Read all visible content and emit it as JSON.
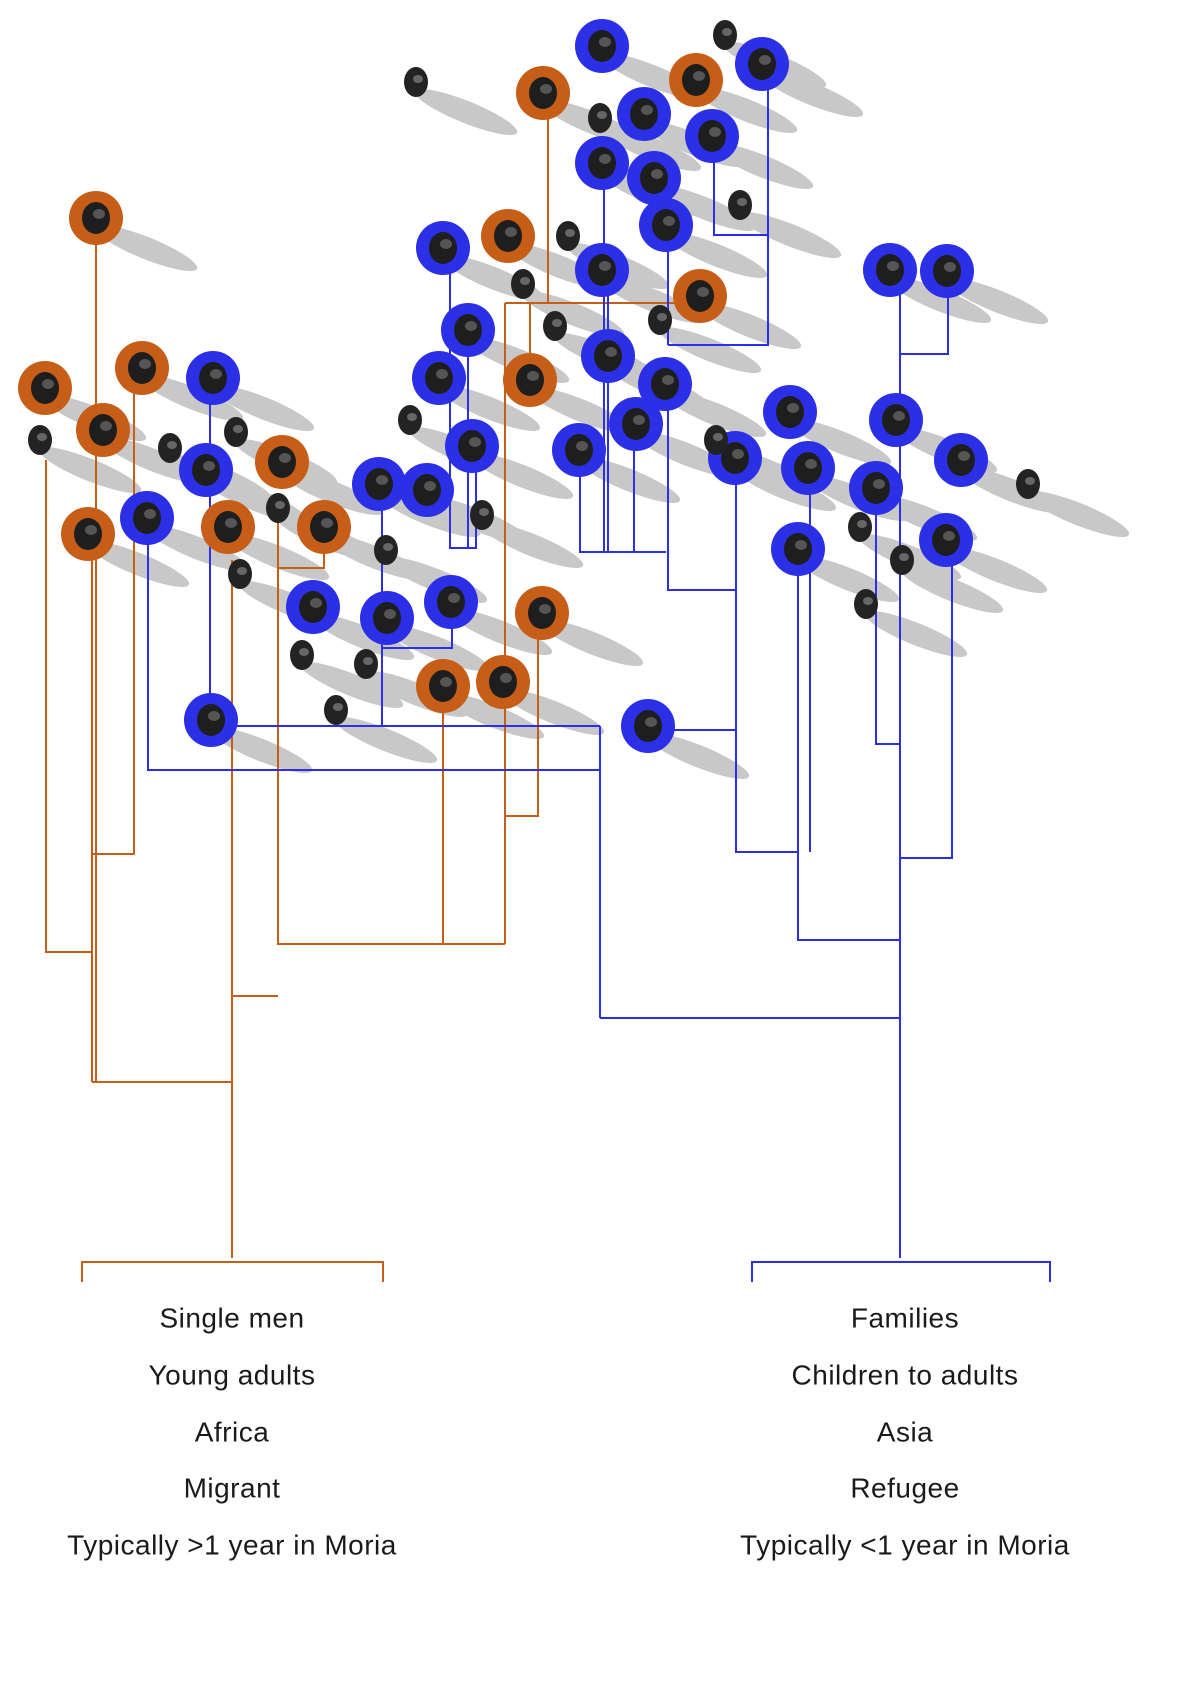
{
  "groups": [
    {
      "labels": [
        "Single men",
        "Young adults",
        "Africa",
        "Migrant",
        "Typically >1 year in Moria"
      ]
    },
    {
      "labels": [
        "Families",
        "Children to adults",
        "Asia",
        "Refugee",
        "Typically <1 year in Moria"
      ]
    }
  ]
}
